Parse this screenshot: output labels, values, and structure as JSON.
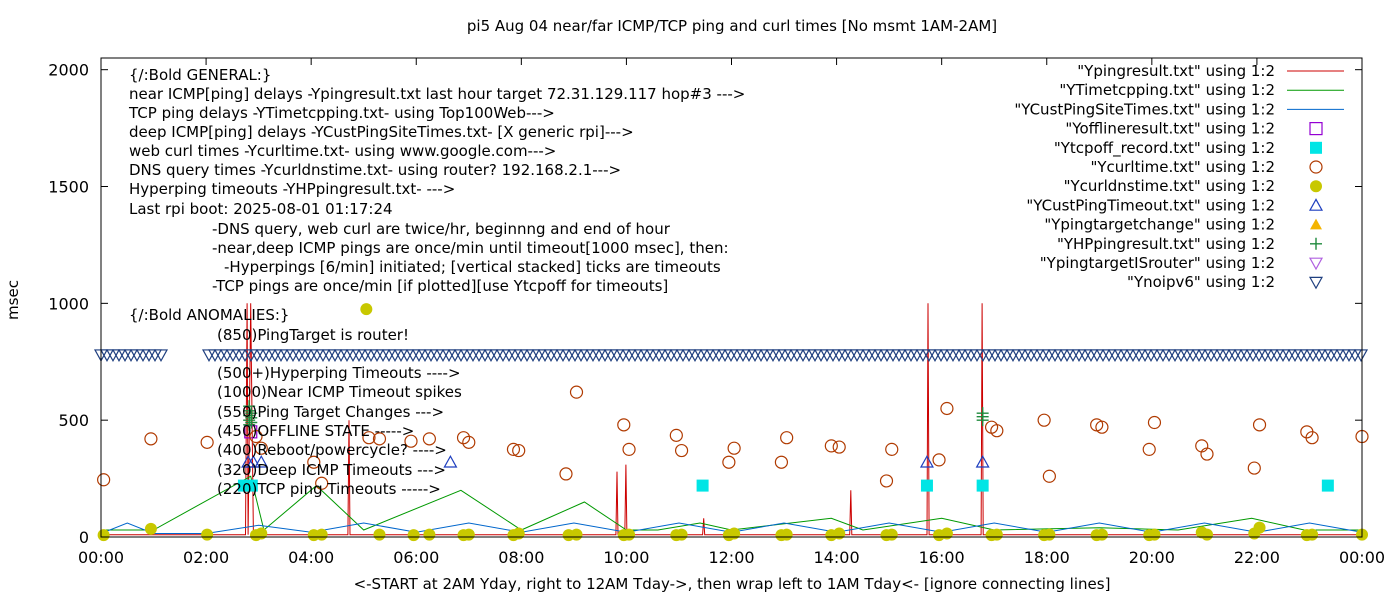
{
  "chart_data": {
    "type": "line",
    "title": "pi5 Aug 04  near/far ICMP/TCP ping and curl times [No msmt 1AM-2AM]",
    "xlabel": "<-START at 2AM Yday, right to 12AM Tday->, then wrap left to 1AM Tday<- [ignore connecting lines]",
    "ylabel": "msec",
    "xlim": [
      0,
      24
    ],
    "ylim": [
      0,
      2050
    ],
    "x_tick_labels": [
      "00:00",
      "02:00",
      "04:00",
      "06:00",
      "08:00",
      "10:00",
      "12:00",
      "14:00",
      "16:00",
      "18:00",
      "20:00",
      "22:00",
      "00:00"
    ],
    "x_tick_values": [
      0,
      2,
      4,
      6,
      8,
      10,
      12,
      14,
      16,
      18,
      20,
      22,
      24
    ],
    "y_ticks": [
      0,
      500,
      1000,
      1500,
      2000
    ],
    "grid": false,
    "legend_position": "top-right",
    "annotations": [
      "{/:Bold GENERAL:}",
      "near ICMP[ping] delays -Ypingresult.txt last hour target 72.31.129.117 hop#3 --->",
      "TCP ping delays -YTimetcpping.txt- using Top100Web--->",
      "deep ICMP[ping] delays -YCustPingSiteTimes.txt- [X generic rpi]--->",
      "web curl times -Ycurltime.txt- using www.google.com--->",
      "DNS query times -Ycurldnstime.txt- using router? 192.168.2.1--->",
      "Hyperping timeouts -YHPpingresult.txt- --->",
      "Last rpi boot: 2025-08-01 01:17:24",
      "-DNS query, web curl are twice/hr, beginnng and end of hour",
      "-near,deep ICMP pings are once/min until timeout[1000 msec], then:",
      "-Hyperpings [6/min] initiated; [vertical stacked] ticks are timeouts",
      "-TCP pings are once/min [if plotted][use Ytcpoff for timeouts]",
      "{/:Bold ANOMALIES:}",
      "(850)PingTarget is router!",
      "(500+)Hyperping Timeouts ---->",
      "(1000)Near ICMP Timeout spikes",
      "(550)Ping Target Changes --->",
      "(450)OFFLINE STATE ----->",
      "(400)Reboot/powercycle? ---->",
      "(320)Deep ICMP Timeouts --->",
      "(220)TCP ping Timeouts ----->"
    ],
    "series": [
      {
        "name": "\"Ypingresult.txt\" using 1:2",
        "style": "line",
        "color": "#cc0000",
        "points": [
          [
            0,
            10
          ],
          [
            2.75,
            10
          ],
          [
            2.78,
            1000
          ],
          [
            2.8,
            10
          ],
          [
            2.85,
            1000
          ],
          [
            2.9,
            10
          ],
          [
            4.7,
            10
          ],
          [
            4.72,
            500
          ],
          [
            4.74,
            10
          ],
          [
            9.8,
            10
          ],
          [
            9.82,
            280
          ],
          [
            9.84,
            10
          ],
          [
            9.97,
            10
          ],
          [
            9.99,
            310
          ],
          [
            10.01,
            10
          ],
          [
            11.45,
            10
          ],
          [
            11.47,
            80
          ],
          [
            11.49,
            10
          ],
          [
            14.25,
            10
          ],
          [
            14.27,
            200
          ],
          [
            14.29,
            10
          ],
          [
            15.72,
            10
          ],
          [
            15.74,
            1000
          ],
          [
            15.76,
            10
          ],
          [
            16.75,
            10
          ],
          [
            16.77,
            1000
          ],
          [
            16.79,
            10
          ],
          [
            24,
            10
          ]
        ]
      },
      {
        "name": "\"YTimetcpping.txt\" using 1:2",
        "style": "line",
        "color": "#009900",
        "points": [
          [
            0,
            30
          ],
          [
            1.0,
            30
          ],
          [
            2.85,
            260
          ],
          [
            3.1,
            30
          ],
          [
            4.1,
            220
          ],
          [
            5.0,
            30
          ],
          [
            6.85,
            200
          ],
          [
            8.0,
            30
          ],
          [
            9.2,
            150
          ],
          [
            10.0,
            30
          ],
          [
            10.6,
            30
          ],
          [
            11.4,
            60
          ],
          [
            12.0,
            30
          ],
          [
            13.9,
            80
          ],
          [
            14.5,
            30
          ],
          [
            16.0,
            80
          ],
          [
            17.0,
            30
          ],
          [
            19.0,
            40
          ],
          [
            20.5,
            30
          ],
          [
            21.9,
            80
          ],
          [
            22.9,
            30
          ],
          [
            24,
            30
          ]
        ]
      },
      {
        "name": "\"YCustPingSiteTimes.txt\" using 1:2",
        "style": "line",
        "color": "#0066cc",
        "points": [
          [
            0,
            15
          ],
          [
            0.5,
            60
          ],
          [
            1.0,
            15
          ],
          [
            2.0,
            15
          ],
          [
            3.0,
            50
          ],
          [
            4.0,
            20
          ],
          [
            5.0,
            60
          ],
          [
            6.0,
            20
          ],
          [
            7.0,
            60
          ],
          [
            8.0,
            20
          ],
          [
            9.0,
            60
          ],
          [
            10.0,
            20
          ],
          [
            11.0,
            60
          ],
          [
            12.0,
            20
          ],
          [
            13.0,
            60
          ],
          [
            14.0,
            20
          ],
          [
            15.0,
            60
          ],
          [
            16.0,
            20
          ],
          [
            17.0,
            60
          ],
          [
            18.0,
            20
          ],
          [
            19.0,
            60
          ],
          [
            20.0,
            20
          ],
          [
            21.0,
            60
          ],
          [
            22.0,
            20
          ],
          [
            23.0,
            60
          ],
          [
            24,
            20
          ]
        ]
      },
      {
        "name": "\"Yofflineresult.txt\" using 1:2",
        "style": "open-square",
        "color": "#9400d3",
        "points": [
          [
            2.85,
            450
          ]
        ]
      },
      {
        "name": "\"Ytcpoff_record.txt\" using 1:2",
        "style": "filled-square",
        "color": "#00e5e5",
        "points": [
          [
            2.72,
            220
          ],
          [
            2.87,
            220
          ],
          [
            11.45,
            220
          ],
          [
            15.72,
            220
          ],
          [
            16.78,
            220
          ],
          [
            23.35,
            220
          ]
        ]
      },
      {
        "name": "\"Ycurltime.txt\" using 1:2",
        "style": "open-circle",
        "color": "#b03a00",
        "points": [
          [
            0.05,
            245
          ],
          [
            0.95,
            420
          ],
          [
            2.02,
            405
          ],
          [
            2.95,
            430
          ],
          [
            3.05,
            380
          ],
          [
            4.05,
            320
          ],
          [
            4.2,
            230
          ],
          [
            5.1,
            425
          ],
          [
            5.3,
            420
          ],
          [
            5.9,
            410
          ],
          [
            6.25,
            420
          ],
          [
            6.9,
            425
          ],
          [
            7.0,
            405
          ],
          [
            7.85,
            375
          ],
          [
            7.95,
            370
          ],
          [
            8.85,
            270
          ],
          [
            9.05,
            620
          ],
          [
            9.95,
            480
          ],
          [
            10.05,
            375
          ],
          [
            10.95,
            435
          ],
          [
            11.05,
            370
          ],
          [
            11.95,
            320
          ],
          [
            12.05,
            380
          ],
          [
            12.95,
            320
          ],
          [
            13.05,
            425
          ],
          [
            13.9,
            390
          ],
          [
            14.05,
            385
          ],
          [
            14.95,
            240
          ],
          [
            15.05,
            375
          ],
          [
            15.95,
            330
          ],
          [
            16.1,
            550
          ],
          [
            16.95,
            470
          ],
          [
            17.05,
            455
          ],
          [
            17.95,
            500
          ],
          [
            18.05,
            260
          ],
          [
            18.95,
            480
          ],
          [
            19.05,
            470
          ],
          [
            19.95,
            375
          ],
          [
            20.05,
            490
          ],
          [
            20.95,
            390
          ],
          [
            21.05,
            355
          ],
          [
            21.95,
            295
          ],
          [
            22.05,
            480
          ],
          [
            22.95,
            450
          ],
          [
            23.05,
            425
          ],
          [
            24,
            430
          ]
        ]
      },
      {
        "name": "\"Ycurldnstime.txt\" using 1:2",
        "style": "filled-circle",
        "color": "#c8c800",
        "points": [
          [
            0.05,
            8
          ],
          [
            0.95,
            35
          ],
          [
            2.02,
            10
          ],
          [
            2.95,
            8
          ],
          [
            3.05,
            15
          ],
          [
            4.05,
            8
          ],
          [
            4.2,
            10
          ],
          [
            5.05,
            975
          ],
          [
            5.3,
            10
          ],
          [
            5.95,
            8
          ],
          [
            6.25,
            10
          ],
          [
            6.9,
            8
          ],
          [
            7.0,
            10
          ],
          [
            7.85,
            8
          ],
          [
            7.95,
            15
          ],
          [
            8.9,
            8
          ],
          [
            9.05,
            10
          ],
          [
            9.95,
            8
          ],
          [
            10.05,
            10
          ],
          [
            10.95,
            8
          ],
          [
            11.05,
            10
          ],
          [
            11.95,
            8
          ],
          [
            12.05,
            15
          ],
          [
            12.95,
            8
          ],
          [
            13.05,
            10
          ],
          [
            13.9,
            8
          ],
          [
            14.05,
            15
          ],
          [
            14.95,
            8
          ],
          [
            15.05,
            10
          ],
          [
            15.95,
            8
          ],
          [
            16.1,
            15
          ],
          [
            16.95,
            8
          ],
          [
            17.05,
            10
          ],
          [
            17.95,
            8
          ],
          [
            18.05,
            10
          ],
          [
            18.95,
            8
          ],
          [
            19.05,
            10
          ],
          [
            19.95,
            8
          ],
          [
            20.05,
            10
          ],
          [
            20.95,
            20
          ],
          [
            21.05,
            10
          ],
          [
            21.95,
            15
          ],
          [
            22.05,
            40
          ],
          [
            22.95,
            8
          ],
          [
            23.05,
            10
          ],
          [
            24,
            10
          ]
        ]
      },
      {
        "name": "\"YCustPingTimeout.txt\" using 1:2",
        "style": "open-triangle-up",
        "color": "#1f3fbf",
        "points": [
          [
            2.8,
            320
          ],
          [
            2.9,
            320
          ],
          [
            3.05,
            320
          ],
          [
            6.65,
            320
          ],
          [
            15.72,
            320
          ],
          [
            16.78,
            320
          ]
        ]
      },
      {
        "name": "\"Ypingtargetchange\" using 1:2",
        "style": "filled-triangle-up",
        "color": "#f4b400",
        "points": []
      },
      {
        "name": "\"YHPpingresult.txt\" using 1:2",
        "style": "plus",
        "color": "#1e8a3c",
        "points": [
          [
            2.82,
            480
          ],
          [
            2.82,
            500
          ],
          [
            2.82,
            520
          ],
          [
            2.82,
            540
          ],
          [
            2.82,
            560
          ],
          [
            2.86,
            490
          ],
          [
            2.86,
            510
          ],
          [
            2.86,
            530
          ],
          [
            16.78,
            500
          ],
          [
            16.78,
            515
          ],
          [
            16.78,
            530
          ]
        ]
      },
      {
        "name": "\"YpingtargetISrouter\" using 1:2",
        "style": "open-triangle-down",
        "color": "#b060e0",
        "points": []
      },
      {
        "name": "\"Ynoipv6\" using 1:2",
        "style": "open-triangle-down",
        "color": "#1f3f7f",
        "points": [
          [
            0,
            780
          ],
          [
            0.25,
            780
          ],
          [
            0.5,
            780
          ],
          [
            0.75,
            780
          ],
          [
            1.0,
            780
          ],
          [
            2.0,
            780
          ],
          [
            2.5,
            780
          ],
          [
            3.0,
            780
          ],
          [
            4.0,
            780
          ],
          [
            5.0,
            780
          ],
          [
            6.0,
            780
          ],
          [
            7.0,
            780
          ],
          [
            8.0,
            780
          ],
          [
            9.0,
            780
          ],
          [
            10.0,
            780
          ],
          [
            11.0,
            780
          ],
          [
            12.0,
            780
          ],
          [
            13.0,
            780
          ],
          [
            14.0,
            780
          ],
          [
            15.0,
            780
          ],
          [
            16.0,
            780
          ],
          [
            17.0,
            780
          ],
          [
            18.0,
            780
          ],
          [
            19.0,
            780
          ],
          [
            20.0,
            780
          ],
          [
            21.0,
            780
          ],
          [
            22.0,
            780
          ],
          [
            23.0,
            780
          ],
          [
            24,
            780
          ]
        ]
      }
    ]
  }
}
